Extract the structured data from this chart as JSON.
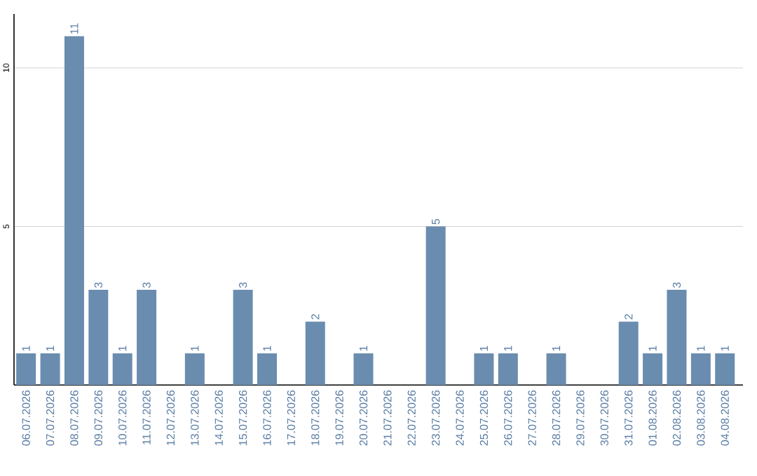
{
  "chart_data": {
    "type": "bar",
    "categories": [
      "06.07.2026",
      "07.07.2026",
      "08.07.2026",
      "09.07.2026",
      "10.07.2026",
      "11.07.2026",
      "12.07.2026",
      "13.07.2026",
      "14.07.2026",
      "15.07.2026",
      "16.07.2026",
      "17.07.2026",
      "18.07.2026",
      "19.07.2026",
      "20.07.2026",
      "21.07.2026",
      "22.07.2026",
      "23.07.2026",
      "24.07.2026",
      "25.07.2026",
      "26.07.2026",
      "27.07.2026",
      "28.07.2026",
      "29.07.2026",
      "30.07.2026",
      "31.07.2026",
      "01.08.2026",
      "02.08.2026",
      "03.08.2026",
      "04.08.2026"
    ],
    "values": [
      1,
      1,
      11,
      3,
      1,
      3,
      0,
      1,
      0,
      3,
      1,
      0,
      2,
      0,
      1,
      0,
      0,
      5,
      0,
      1,
      1,
      0,
      1,
      0,
      0,
      2,
      1,
      3,
      1,
      1
    ],
    "value_labels": [
      "1",
      "1",
      "11",
      "3",
      "1",
      "3",
      null,
      "1",
      null,
      "3",
      "1",
      null,
      "2",
      null,
      "1",
      null,
      null,
      "5",
      null,
      "1",
      "1",
      null,
      "1",
      null,
      null,
      "2",
      "1",
      "3",
      "1",
      "1"
    ],
    "color": "#6a8caf",
    "ylim": [
      0,
      11.7
    ],
    "yticks": [
      5,
      10
    ],
    "grid": "y"
  }
}
